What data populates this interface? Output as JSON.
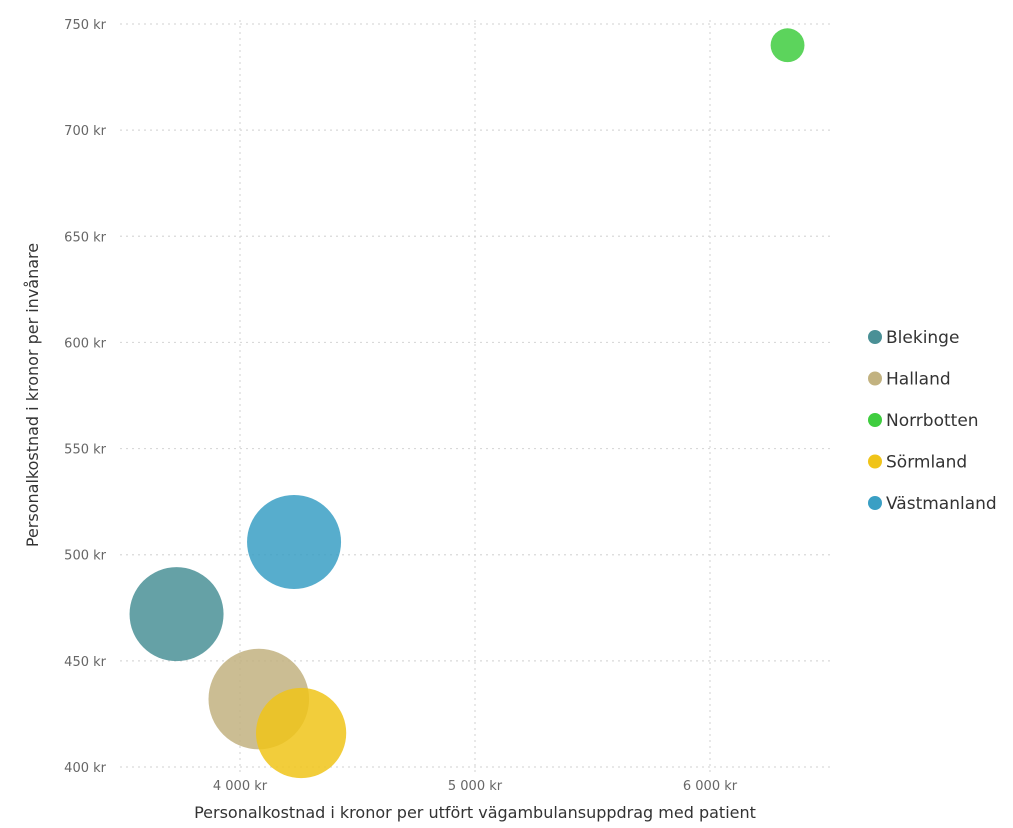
{
  "chart_data": {
    "type": "scatter",
    "title": "",
    "xlabel": "Personalkostnad i kronor per utfört vägambulansuppdrag med patient",
    "ylabel": "Personalkostnad i kronor per invånare",
    "xlim": [
      3000,
      6500
    ],
    "ylim": [
      400,
      760
    ],
    "x_ticks": [
      4000,
      5000,
      6000
    ],
    "x_tick_labels": [
      "4 000 kr",
      "5 000 kr",
      "6 000 kr"
    ],
    "y_ticks": [
      400,
      450,
      500,
      550,
      600,
      650,
      700,
      750
    ],
    "y_tick_labels": [
      "400 kr",
      "450 kr",
      "500 kr",
      "550 kr",
      "600 kr",
      "650 kr",
      "700 kr",
      "750 kr"
    ],
    "grid": true,
    "legend_position": "right",
    "series": [
      {
        "name": "Blekinge",
        "x": 3730,
        "y": 472,
        "relative_size": 1.0,
        "color": "#4a9096"
      },
      {
        "name": "Halland",
        "x": 4080,
        "y": 432,
        "relative_size": 1.07,
        "color": "#c2b280"
      },
      {
        "name": "Norrbotten",
        "x": 6330,
        "y": 740,
        "relative_size": 0.36,
        "color": "#3fcd3f"
      },
      {
        "name": "Sörmland",
        "x": 4260,
        "y": 416,
        "relative_size": 0.96,
        "color": "#f0c419"
      },
      {
        "name": "Västmanland",
        "x": 4230,
        "y": 506,
        "relative_size": 1.0,
        "color": "#3a9fc4"
      }
    ]
  }
}
